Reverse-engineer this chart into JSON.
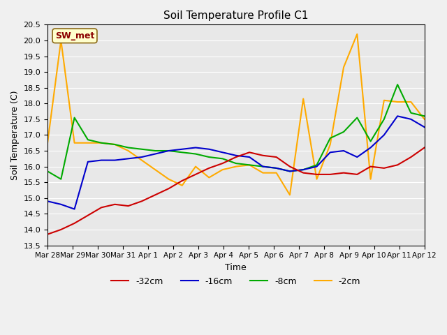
{
  "title": "Soil Temperature Profile C1",
  "xlabel": "Time",
  "ylabel": "Soil Temperature (C)",
  "ylim": [
    13.5,
    20.5
  ],
  "background_color": "#e8e8e8",
  "legend_label": "SW_met",
  "series": {
    "-32cm": {
      "color": "#cc0000",
      "x": [
        0,
        0.5,
        1.0,
        1.5,
        2.0,
        2.5,
        3.0,
        3.5,
        4.0,
        4.5,
        5.0,
        5.5,
        6.0,
        6.5,
        7.0,
        7.5,
        8.0,
        8.5,
        9.0,
        9.5,
        10.0,
        10.5,
        11.0,
        11.5,
        12.0,
        12.5,
        13.0,
        13.5,
        14.0
      ],
      "y": [
        13.85,
        14.0,
        14.2,
        14.45,
        14.7,
        14.8,
        14.75,
        14.9,
        15.1,
        15.3,
        15.55,
        15.75,
        15.95,
        16.1,
        16.3,
        16.45,
        16.35,
        16.3,
        16.0,
        15.8,
        15.75,
        15.75,
        15.8,
        15.75,
        16.0,
        15.95,
        16.05,
        16.3,
        16.6
      ]
    },
    "-16cm": {
      "color": "#0000cc",
      "x": [
        0,
        0.5,
        1.0,
        1.5,
        2.0,
        2.5,
        3.0,
        3.5,
        4.0,
        4.5,
        5.0,
        5.5,
        6.0,
        6.5,
        7.0,
        7.5,
        8.0,
        8.5,
        9.0,
        9.5,
        10.0,
        10.5,
        11.0,
        11.5,
        12.0,
        12.5,
        13.0,
        13.5,
        14.0
      ],
      "y": [
        14.9,
        14.8,
        14.65,
        16.15,
        16.2,
        16.2,
        16.25,
        16.3,
        16.4,
        16.5,
        16.55,
        16.6,
        16.55,
        16.45,
        16.35,
        16.3,
        16.0,
        15.95,
        15.85,
        15.9,
        16.0,
        16.45,
        16.5,
        16.3,
        16.6,
        17.0,
        17.6,
        17.5,
        17.25
      ]
    },
    "-8cm": {
      "color": "#00aa00",
      "x": [
        0,
        0.5,
        1.0,
        1.5,
        2.0,
        2.5,
        3.0,
        3.5,
        4.0,
        4.5,
        5.0,
        5.5,
        6.0,
        6.5,
        7.0,
        7.5,
        8.0,
        8.5,
        9.0,
        9.5,
        10.0,
        10.5,
        11.0,
        11.5,
        12.0,
        12.5,
        13.0,
        13.5,
        14.0
      ],
      "y": [
        15.85,
        15.6,
        17.55,
        16.85,
        16.75,
        16.7,
        16.6,
        16.55,
        16.5,
        16.5,
        16.45,
        16.4,
        16.3,
        16.25,
        16.1,
        16.05,
        16.0,
        15.95,
        15.85,
        15.9,
        16.05,
        16.9,
        17.1,
        17.55,
        16.8,
        17.5,
        18.6,
        17.7,
        17.6
      ]
    },
    "-2cm": {
      "color": "#ffaa00",
      "x": [
        0,
        0.5,
        1.0,
        1.5,
        2.0,
        2.5,
        3.0,
        3.5,
        4.0,
        4.5,
        5.0,
        5.5,
        6.0,
        6.5,
        7.0,
        7.5,
        8.0,
        8.5,
        9.0,
        9.5,
        10.0,
        10.5,
        11.0,
        11.5,
        12.0,
        12.5,
        13.0,
        13.5,
        14.0
      ],
      "y": [
        16.75,
        20.0,
        16.75,
        16.75,
        16.75,
        16.7,
        16.5,
        16.2,
        15.9,
        15.6,
        15.4,
        16.0,
        15.65,
        15.9,
        16.0,
        16.05,
        15.8,
        15.8,
        15.1,
        18.15,
        15.6,
        16.7,
        19.15,
        20.2,
        15.6,
        18.1,
        18.05,
        18.05,
        17.5
      ]
    }
  },
  "xtick_labels": [
    "Mar 28",
    "Mar 29",
    "Mar 30",
    "Mar 31",
    "Apr 1",
    "Apr 2",
    "Apr 3",
    "Apr 4",
    "Apr 5",
    "Apr 6",
    "Apr 7",
    "Apr 8",
    "Apr 9",
    "Apr 10",
    "Apr 11",
    "Apr 12"
  ]
}
